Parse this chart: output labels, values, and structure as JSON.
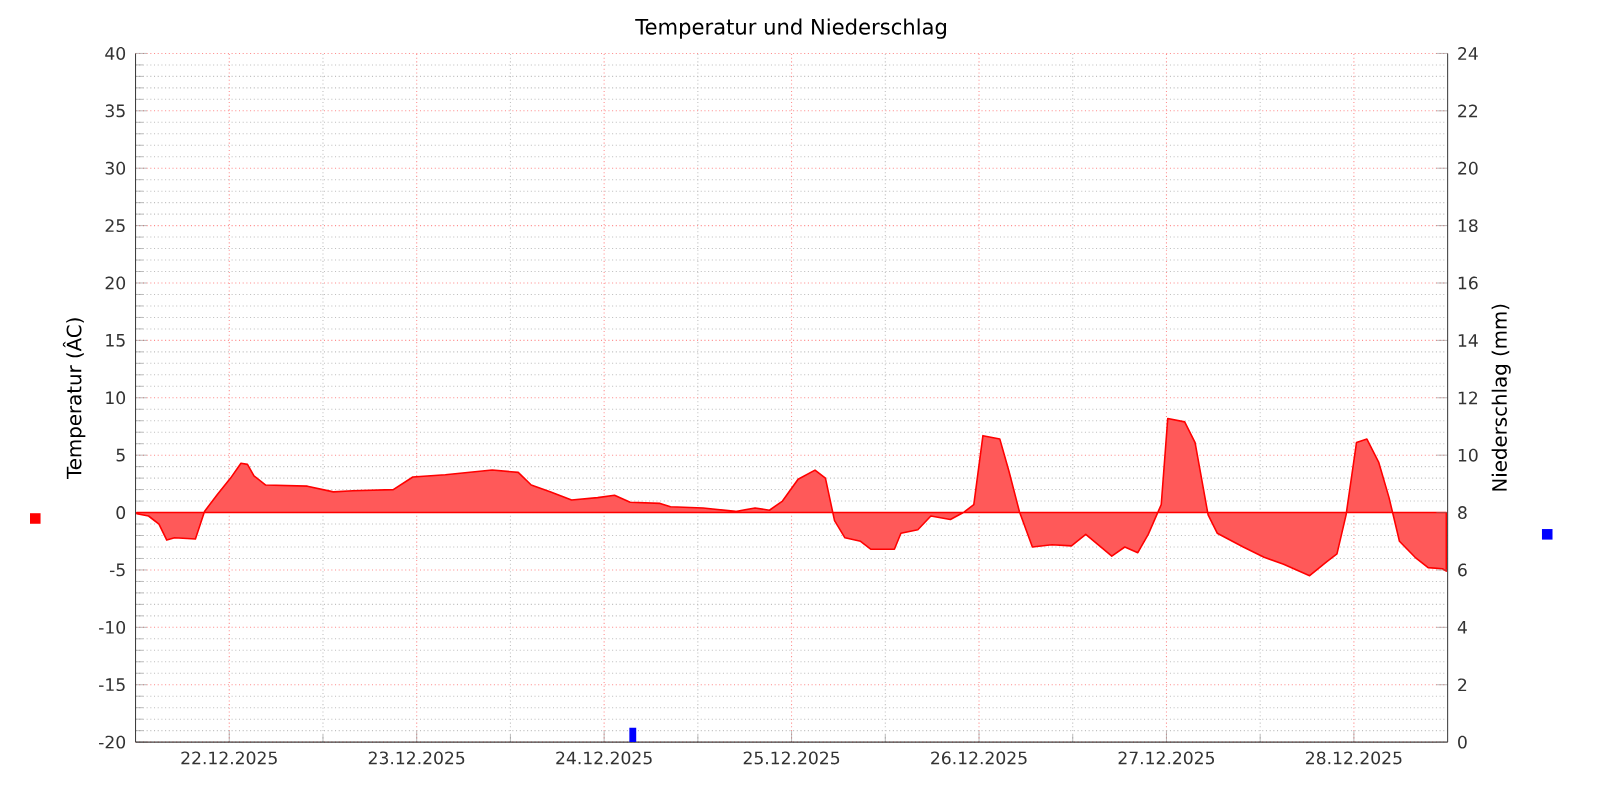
{
  "chart_data": {
    "type": "area",
    "title": "Temperatur und Niederschlag",
    "ylabel": "Temperatur (ÂC)",
    "y2label": "Niederschlag (mm)",
    "xlim": [
      "2025-12-22T00:00",
      "2025-12-29T00:00"
    ],
    "xticks": [
      {
        "value": "2025-12-22T12:00",
        "label": "22.12.2025"
      },
      {
        "value": "2025-12-23T12:00",
        "label": "23.12.2025"
      },
      {
        "value": "2025-12-24T12:00",
        "label": "24.12.2025"
      },
      {
        "value": "2025-12-25T12:00",
        "label": "25.12.2025"
      },
      {
        "value": "2025-12-26T12:00",
        "label": "26.12.2025"
      },
      {
        "value": "2025-12-27T12:00",
        "label": "27.12.2025"
      },
      {
        "value": "2025-12-28T12:00",
        "label": "28.12.2025"
      }
    ],
    "ylim": [
      -20,
      40
    ],
    "yticks": [
      -20,
      -15,
      -10,
      -5,
      0,
      5,
      10,
      15,
      20,
      25,
      30,
      35,
      40
    ],
    "y2lim": [
      0,
      24
    ],
    "y2ticks": [
      0,
      2,
      4,
      6,
      8,
      10,
      12,
      14,
      16,
      18,
      20,
      22,
      24
    ],
    "grid": true,
    "series": [
      {
        "color": "#ff0000",
        "x": [
          "2025-12-22T00:10",
          "2025-12-22T01:40",
          "2025-12-22T03:00",
          "2025-12-22T04:00",
          "2025-12-22T05:00",
          "2025-12-22T07:40",
          "2025-12-22T08:50",
          "2025-12-22T10:30",
          "2025-12-22T12:10",
          "2025-12-22T13:30",
          "2025-12-22T14:20",
          "2025-12-22T15:10",
          "2025-12-22T16:40",
          "2025-12-22T22:00",
          "2025-12-23T01:20",
          "2025-12-23T03:50",
          "2025-12-23T09:00",
          "2025-12-23T11:30",
          "2025-12-23T15:40",
          "2025-12-23T21:40",
          "2025-12-24T01:00",
          "2025-12-24T02:40",
          "2025-12-24T05:10",
          "2025-12-24T07:50",
          "2025-12-24T11:10",
          "2025-12-24T13:20",
          "2025-12-24T15:20",
          "2025-12-24T19:10",
          "2025-12-24T20:30",
          "2025-12-25T00:40",
          "2025-12-25T04:50",
          "2025-12-25T07:20",
          "2025-12-25T09:10",
          "2025-12-25T10:50",
          "2025-12-25T12:50",
          "2025-12-25T15:00",
          "2025-12-25T16:20",
          "2025-12-25T17:30",
          "2025-12-25T18:50",
          "2025-12-25T20:50",
          "2025-12-25T22:10",
          "2025-12-26T01:10",
          "2025-12-26T02:00",
          "2025-12-26T04:10",
          "2025-12-26T05:50",
          "2025-12-26T08:20",
          "2025-12-26T10:00",
          "2025-12-26T11:20",
          "2025-12-26T12:30",
          "2025-12-26T14:40",
          "2025-12-26T15:50",
          "2025-12-26T17:10",
          "2025-12-26T18:50",
          "2025-12-26T21:20",
          "2025-12-26T23:50",
          "2025-12-27T01:40",
          "2025-12-27T05:00",
          "2025-12-27T06:40",
          "2025-12-27T08:20",
          "2025-12-27T09:40",
          "2025-12-27T11:20",
          "2025-12-27T12:10",
          "2025-12-27T14:20",
          "2025-12-27T15:40",
          "2025-12-27T17:20",
          "2025-12-27T18:30",
          "2025-12-27T21:50",
          "2025-12-28T00:30",
          "2025-12-28T03:00",
          "2025-12-28T06:20",
          "2025-12-28T08:30",
          "2025-12-28T09:50",
          "2025-12-28T11:00",
          "2025-12-28T12:20",
          "2025-12-28T13:40",
          "2025-12-28T15:10",
          "2025-12-28T16:30",
          "2025-12-28T17:50",
          "2025-12-28T19:50",
          "2025-12-28T21:30",
          "2025-12-28T23:20",
          "2025-12-28T23:50"
        ],
        "values": [
          -0.1,
          -0.3,
          -1.0,
          -2.4,
          -2.2,
          -2.3,
          0.1,
          1.6,
          3.0,
          4.3,
          4.2,
          3.2,
          2.4,
          2.3,
          1.8,
          1.9,
          2.0,
          3.1,
          3.3,
          3.7,
          3.5,
          2.4,
          1.8,
          1.1,
          1.3,
          1.5,
          0.9,
          0.8,
          0.5,
          0.4,
          0.1,
          0.4,
          0.2,
          1.0,
          2.9,
          3.7,
          3.0,
          -0.7,
          -2.2,
          -2.5,
          -3.2,
          -3.2,
          -1.8,
          -1.5,
          -0.3,
          -0.6,
          0,
          0.7,
          6.7,
          6.4,
          3.6,
          0.1,
          -3.0,
          -2.8,
          -2.9,
          -1.9,
          -3.8,
          -3.0,
          -3.5,
          -1.9,
          0.7,
          8.2,
          7.9,
          6.1,
          -0.2,
          -1.8,
          -3.0,
          -3.9,
          -4.5,
          -5.5,
          -4.3,
          -3.6,
          -0.2,
          6.1,
          6.4,
          4.4,
          1.3,
          -2.5,
          -3.9,
          -4.8,
          -4.9,
          -5.1
        ]
      },
      {
        "type": "bar",
        "axis": "y2",
        "color": "#0000ff",
        "x": [
          "2025-12-24T15:40"
        ],
        "values": [
          0.5
        ]
      }
    ]
  }
}
